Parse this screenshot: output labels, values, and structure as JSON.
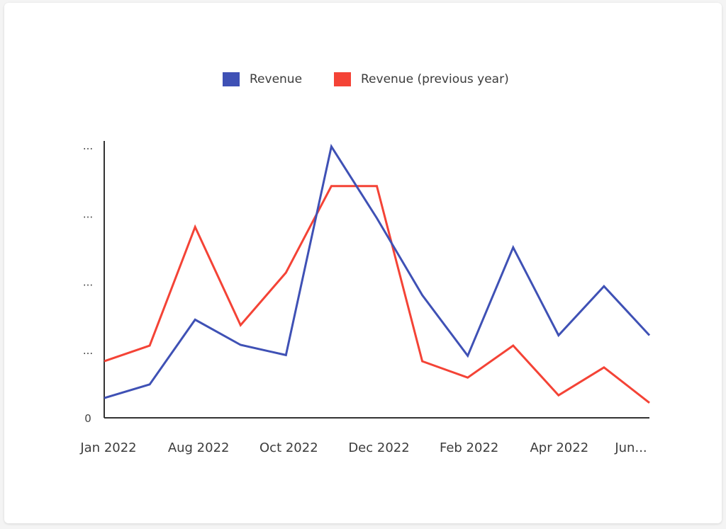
{
  "legend": {
    "items": [
      {
        "label": "Revenue",
        "color": "#3f51b5"
      },
      {
        "label": "Revenue (previous year)",
        "color": "#f44336"
      }
    ]
  },
  "chart_data": {
    "type": "line",
    "title": "",
    "xlabel": "",
    "ylabel": "",
    "x_tick_labels": [
      "Jan 2022",
      "Aug 2022",
      "Oct 2022",
      "Dec 2022",
      "Feb 2022",
      "Apr 2022",
      "Jun..."
    ],
    "y_tick_labels": [
      "0",
      "...",
      "...",
      "...",
      "..."
    ],
    "ylim": [
      0,
      4
    ],
    "grid": false,
    "legend_position": "top",
    "series": [
      {
        "name": "Revenue",
        "color": "#3f51b5",
        "values": [
          0.29,
          0.49,
          1.44,
          1.07,
          0.92,
          3.98,
          2.93,
          1.8,
          0.91,
          2.5,
          1.21,
          1.93,
          1.21
        ]
      },
      {
        "name": "Revenue (previous year)",
        "color": "#f44336",
        "values": [
          0.83,
          1.06,
          2.8,
          1.36,
          2.13,
          3.4,
          3.4,
          0.83,
          0.59,
          1.06,
          0.33,
          0.74,
          0.22
        ]
      }
    ]
  }
}
